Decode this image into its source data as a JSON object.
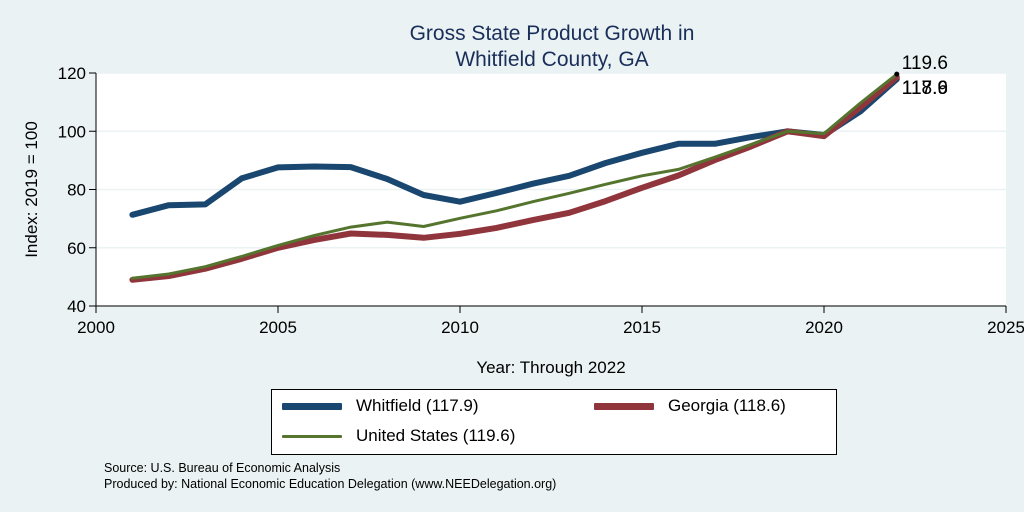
{
  "chart_data": {
    "type": "line",
    "title_lines": [
      "Gross State Product Growth in",
      "Whitfield County, GA"
    ],
    "xlabel": "Year: Through 2022",
    "ylabel": "Index: 2019 = 100",
    "xlim": [
      2000,
      2025
    ],
    "ylim": [
      40,
      120
    ],
    "x_ticks": [
      2000,
      2005,
      2010,
      2015,
      2020,
      2025
    ],
    "y_ticks": [
      40,
      60,
      80,
      100,
      120
    ],
    "x_tick_labels": [
      "2000",
      "2005",
      "2010",
      "2015",
      "2020",
      "2025"
    ],
    "y_tick_labels": [
      "40",
      "60",
      "80",
      "100",
      "120"
    ],
    "x": [
      2001,
      2002,
      2003,
      2004,
      2005,
      2006,
      2007,
      2008,
      2009,
      2010,
      2011,
      2012,
      2013,
      2014,
      2015,
      2016,
      2017,
      2018,
      2019,
      2020,
      2021,
      2022
    ],
    "series": [
      {
        "name": "Whitfield",
        "legend_label": "Whitfield  (117.9)",
        "color": "#1a476f",
        "end_label": "117.9",
        "values": [
          71.3,
          74.6,
          74.9,
          83.8,
          87.6,
          87.9,
          87.7,
          83.6,
          78.1,
          75.8,
          78.8,
          82.0,
          84.7,
          89.1,
          92.6,
          95.7,
          95.7,
          98.0,
          100.0,
          98.7,
          106.8,
          117.9
        ]
      },
      {
        "name": "Georgia",
        "legend_label": "Georgia (118.6)",
        "color": "#90353b",
        "end_label": "118.6",
        "values": [
          49.0,
          50.3,
          52.8,
          56.2,
          60.0,
          62.7,
          64.9,
          64.4,
          63.4,
          64.8,
          66.8,
          69.5,
          72.0,
          76.0,
          80.6,
          84.8,
          90.1,
          94.8,
          100.0,
          98.3,
          108.3,
          118.6
        ]
      },
      {
        "name": "United States",
        "legend_label": "United States (119.6)",
        "color": "#55752f",
        "end_label": "119.6",
        "values": [
          49.5,
          51.0,
          53.5,
          57.0,
          60.8,
          64.2,
          67.1,
          68.8,
          67.3,
          70.1,
          72.7,
          75.8,
          78.7,
          81.8,
          84.7,
          86.9,
          91.1,
          95.5,
          100.0,
          99.2,
          109.7,
          119.6
        ]
      }
    ],
    "grid": true,
    "legend_position": "bottom"
  },
  "notes": {
    "source": "Source: U.S. Bureau of Economic Analysis",
    "produced_by": "Produced by: National Economic Education Delegation (www.NEEDelegation.org)"
  }
}
